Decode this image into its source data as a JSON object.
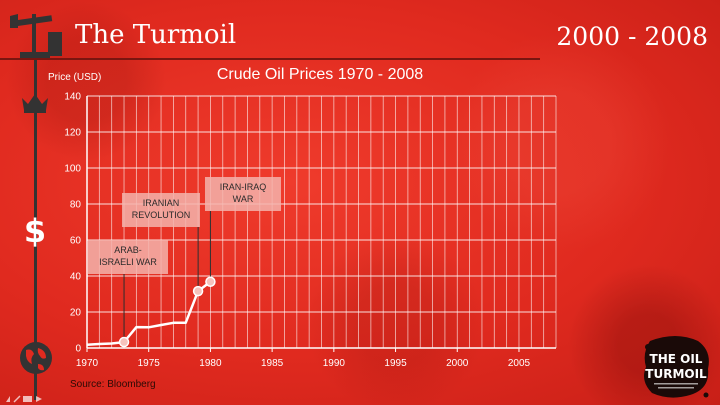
{
  "header": {
    "title": "The Turmoil",
    "years": "2000 - 2008"
  },
  "sidebar": {
    "icons": [
      "oil-pump-icon",
      "crown-icon",
      "dollar-icon",
      "globe-icon"
    ]
  },
  "source": "Source: Bloomberg",
  "logo": {
    "line1": "THE OIL",
    "line2": "TURMOIL"
  },
  "colors": {
    "background": "#e02a1f",
    "grid": "#ffffff",
    "line": "#ffffff",
    "annotation_box": "#f3b3ac"
  },
  "chart_data": {
    "type": "line",
    "title": "Crude Oil Prices 1970 - 2008",
    "ylabel": "Price (USD)",
    "xlabel": "",
    "xlim": [
      1970,
      2008
    ],
    "ylim": [
      0,
      140
    ],
    "xticks": [
      1970,
      1975,
      1980,
      1985,
      1990,
      1995,
      2000,
      2005
    ],
    "yticks": [
      0,
      20,
      40,
      60,
      80,
      100,
      120,
      140
    ],
    "grid": true,
    "series": [
      {
        "values": [
          {
            "x": 1970,
            "y": 1.8
          },
          {
            "x": 1971,
            "y": 2.2
          },
          {
            "x": 1972,
            "y": 2.5
          },
          {
            "x": 1973,
            "y": 3.3
          },
          {
            "x": 1974,
            "y": 11.6
          },
          {
            "x": 1975,
            "y": 11.5
          },
          {
            "x": 1976,
            "y": 12.8
          },
          {
            "x": 1977,
            "y": 14.0
          },
          {
            "x": 1978,
            "y": 14.0
          },
          {
            "x": 1979,
            "y": 31.6
          },
          {
            "x": 1980,
            "y": 36.8
          }
        ]
      }
    ],
    "markers": [
      {
        "x": 1973,
        "y": 3.3
      },
      {
        "x": 1979,
        "y": 31.6
      },
      {
        "x": 1980,
        "y": 36.8
      }
    ],
    "annotations": [
      {
        "lines": [
          "ARAB-",
          "ISRAELI WAR"
        ],
        "x": 1973,
        "y": 3.3
      },
      {
        "lines": [
          "IRANIAN",
          "REVOLUTION"
        ],
        "x": 1979,
        "y": 31.6
      },
      {
        "lines": [
          "IRAN-IRAQ",
          "WAR"
        ],
        "x": 1980,
        "y": 36.8
      }
    ]
  }
}
